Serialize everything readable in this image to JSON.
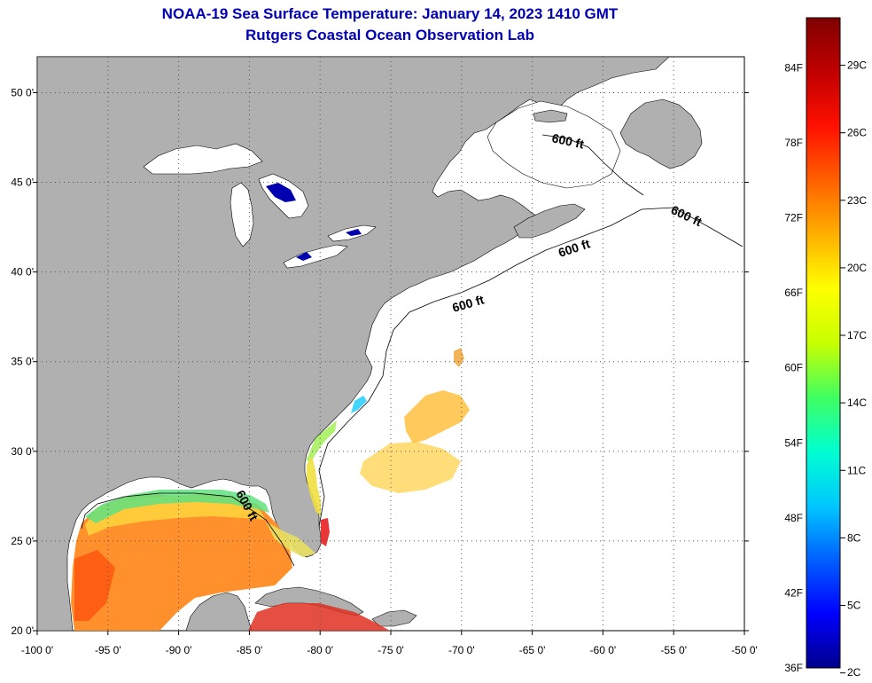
{
  "title": {
    "line1": "NOAA-19 Sea Surface Temperature:  January 14, 2023 1410 GMT",
    "line2": "Rutgers Coastal Ocean Observation Lab"
  },
  "colors": {
    "land": "#b0b0b0",
    "lakes": "#ffffff",
    "ocean_no_data": "#ffffff",
    "title": "#0000b4",
    "grid": "#555555"
  },
  "map": {
    "lon_range": [
      -100,
      -50
    ],
    "lat_range": [
      20,
      52
    ],
    "lon_ticks": [
      "-100 0'",
      "-95 0'",
      "-90 0'",
      "-85 0'",
      "-80 0'",
      "-75 0'",
      "-70 0'",
      "-65 0'",
      "-60 0'",
      "-55 0'",
      "-50 0'"
    ],
    "lat_ticks": [
      "20 0'",
      "25 0'",
      "30 0'",
      "35 0'",
      "40 0'",
      "45 0'",
      "50 0'"
    ],
    "lon_tick_values": [
      -100,
      -95,
      -90,
      -85,
      -80,
      -75,
      -70,
      -65,
      -60,
      -55,
      -50
    ],
    "lat_tick_values": [
      20,
      25,
      30,
      35,
      40,
      45,
      50
    ],
    "grid": "dotted",
    "contour_label": "600 ft"
  },
  "colorbar": {
    "fahrenheit_labels": [
      "84F",
      "78F",
      "72F",
      "66F",
      "60F",
      "54F",
      "48F",
      "42F",
      "36F"
    ],
    "fahrenheit_values": [
      84,
      78,
      72,
      66,
      60,
      54,
      48,
      42,
      36
    ],
    "celsius_labels": [
      "29C",
      "26C",
      "23C",
      "20C",
      "17C",
      "14C",
      "11C",
      "8C",
      "5C",
      "2C"
    ],
    "celsius_values": [
      29,
      26,
      23,
      20,
      17,
      14,
      11,
      8,
      5,
      2
    ],
    "range_f": [
      36,
      88
    ],
    "gradient_stops": [
      "#00008c",
      "#0000ff",
      "#0060ff",
      "#00c8ff",
      "#00ffd0",
      "#40ff60",
      "#c8ff00",
      "#ffff00",
      "#ffb000",
      "#ff6000",
      "#ff1000",
      "#c00000",
      "#800000"
    ]
  }
}
